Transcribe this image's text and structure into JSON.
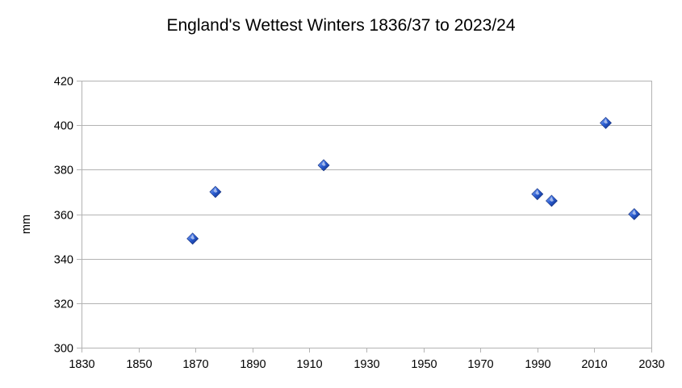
{
  "chart_data": {
    "type": "scatter",
    "title": "England's Wettest Winters 1836/37 to 2023/24",
    "xlabel": "",
    "ylabel": "mm",
    "xlim": [
      1830,
      2030
    ],
    "ylim": [
      300,
      420
    ],
    "xticks": [
      1830,
      1850,
      1870,
      1890,
      1910,
      1930,
      1950,
      1970,
      1990,
      2010,
      2030
    ],
    "yticks": [
      300,
      320,
      340,
      360,
      380,
      400,
      420
    ],
    "grid": {
      "horizontal": true,
      "vertical": false
    },
    "series": [
      {
        "color": "#1f4fbf",
        "marker": "diamond",
        "points": [
          {
            "x": 1869,
            "y": 349
          },
          {
            "x": 1877,
            "y": 370
          },
          {
            "x": 1915,
            "y": 382
          },
          {
            "x": 1990,
            "y": 369
          },
          {
            "x": 1995,
            "y": 366
          },
          {
            "x": 2014,
            "y": 401
          },
          {
            "x": 2024,
            "y": 360
          }
        ]
      }
    ]
  }
}
